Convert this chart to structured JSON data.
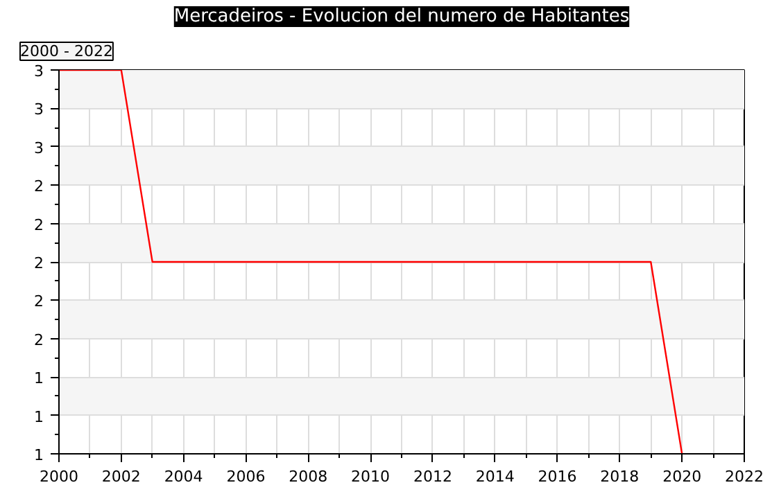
{
  "chart_data": {
    "type": "line",
    "title": "Mercadeiros - Evolucion del numero de Habitantes",
    "annotations": [
      "2000 - 2022"
    ],
    "x": [
      2000,
      2001,
      2002,
      2003,
      2004,
      2005,
      2006,
      2007,
      2008,
      2009,
      2010,
      2011,
      2012,
      2013,
      2014,
      2015,
      2016,
      2017,
      2018,
      2019,
      2020
    ],
    "series": [
      {
        "color": "#ff0000",
        "values": [
          3,
          3,
          3,
          2,
          2,
          2,
          2,
          2,
          2,
          2,
          2,
          2,
          2,
          2,
          2,
          2,
          2,
          2,
          2,
          2,
          1
        ]
      }
    ],
    "xlim": [
      2000,
      2022
    ],
    "xticks": [
      2000,
      2002,
      2004,
      2006,
      2008,
      2010,
      2012,
      2014,
      2016,
      2018,
      2020,
      2022
    ],
    "ylim": [
      1,
      3
    ],
    "yticks": [
      {
        "value": 1,
        "label": "1"
      },
      {
        "value": 1.2,
        "label": "1"
      },
      {
        "value": 1.4,
        "label": "1"
      },
      {
        "value": 1.6,
        "label": "2"
      },
      {
        "value": 1.8,
        "label": "2"
      },
      {
        "value": 2,
        "label": "2"
      },
      {
        "value": 2.2,
        "label": "2"
      },
      {
        "value": 2.4,
        "label": "2"
      },
      {
        "value": 2.6,
        "label": "3"
      },
      {
        "value": 2.8,
        "label": "3"
      },
      {
        "value": 3,
        "label": "3"
      }
    ],
    "grid": true,
    "marker": "none",
    "line_style": "solid"
  }
}
